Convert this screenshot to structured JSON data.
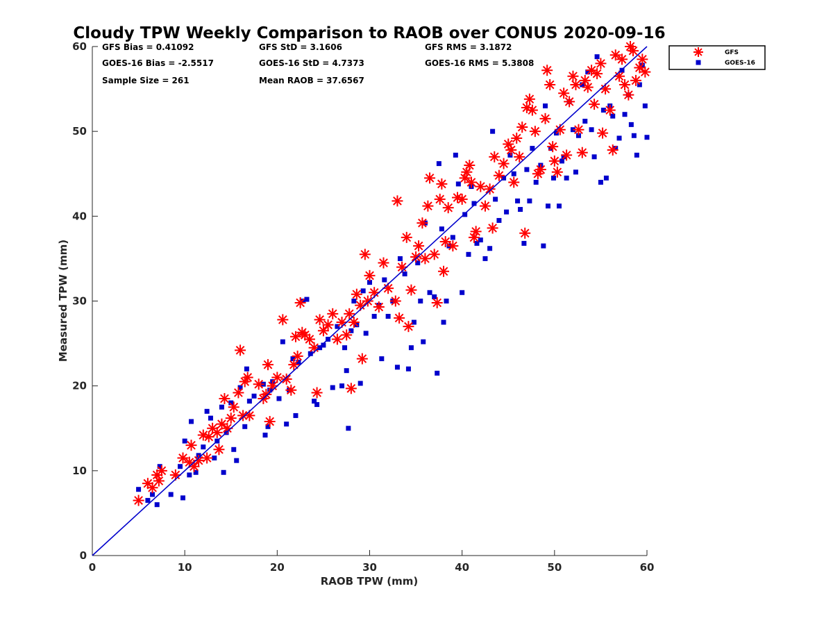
{
  "chart_data": {
    "type": "scatter",
    "title": "Cloudy TPW Weekly Comparison to RAOB over CONUS 2020-09-16",
    "xlabel": "RAOB TPW (mm)",
    "ylabel": "Measured TPW (mm)",
    "xlim": [
      0,
      60
    ],
    "ylim": [
      0,
      60
    ],
    "xticks": [
      "0",
      "10",
      "20",
      "30",
      "40",
      "50",
      "60"
    ],
    "yticks": [
      "0",
      "10",
      "20",
      "30",
      "40",
      "50",
      "60"
    ],
    "grid": false,
    "legend_position": "outside-top-right",
    "reference_line": {
      "x": [
        0,
        60
      ],
      "y": [
        0,
        60
      ],
      "color": "#0000cc"
    },
    "stats": [
      [
        "GFS Bias = 0.41092",
        "GFS StD = 3.1606",
        "GFS RMS = 3.1872"
      ],
      [
        "GOES-16 Bias = -2.5517",
        "GOES-16 StD = 4.7373",
        "GOES-16 RMS = 5.3808"
      ],
      [
        "Sample Size = 261",
        "Mean RAOB = 37.6567"
      ]
    ],
    "series": [
      {
        "name": "GFS",
        "marker": "asterisk",
        "color": "#ff0000",
        "points": [
          [
            5.0,
            6.5
          ],
          [
            6.0,
            8.5
          ],
          [
            6.5,
            8.0
          ],
          [
            7.0,
            9.5
          ],
          [
            7.2,
            8.8
          ],
          [
            7.5,
            10.0
          ],
          [
            9.0,
            9.5
          ],
          [
            9.8,
            11.5
          ],
          [
            10.5,
            11.0
          ],
          [
            10.7,
            13.0
          ],
          [
            11.0,
            10.5
          ],
          [
            11.5,
            11.2
          ],
          [
            12.0,
            14.2
          ],
          [
            12.4,
            11.5
          ],
          [
            12.6,
            14.0
          ],
          [
            13.0,
            15.0
          ],
          [
            13.5,
            14.5
          ],
          [
            13.7,
            12.5
          ],
          [
            14.0,
            15.5
          ],
          [
            14.3,
            18.5
          ],
          [
            14.6,
            15.0
          ],
          [
            15.0,
            16.2
          ],
          [
            15.3,
            17.5
          ],
          [
            15.8,
            19.2
          ],
          [
            16.0,
            24.2
          ],
          [
            16.3,
            16.5
          ],
          [
            16.5,
            20.5
          ],
          [
            16.8,
            21.0
          ],
          [
            17.0,
            16.5
          ],
          [
            18.0,
            20.2
          ],
          [
            18.5,
            18.5
          ],
          [
            18.8,
            19.0
          ],
          [
            19.0,
            22.5
          ],
          [
            19.2,
            15.8
          ],
          [
            19.5,
            20.0
          ],
          [
            20.0,
            21.0
          ],
          [
            20.6,
            27.8
          ],
          [
            21.0,
            20.8
          ],
          [
            21.5,
            19.5
          ],
          [
            21.8,
            22.5
          ],
          [
            22.0,
            25.8
          ],
          [
            22.2,
            23.5
          ],
          [
            22.5,
            29.8
          ],
          [
            22.7,
            26.3
          ],
          [
            23.0,
            26.0
          ],
          [
            23.5,
            25.5
          ],
          [
            24.0,
            24.5
          ],
          [
            24.3,
            19.2
          ],
          [
            24.6,
            27.8
          ],
          [
            25.0,
            26.5
          ],
          [
            25.5,
            27.2
          ],
          [
            26.0,
            28.5
          ],
          [
            26.5,
            25.5
          ],
          [
            27.0,
            27.5
          ],
          [
            27.5,
            26.0
          ],
          [
            27.8,
            28.5
          ],
          [
            28.0,
            19.7
          ],
          [
            28.3,
            27.5
          ],
          [
            28.6,
            30.8
          ],
          [
            29.0,
            29.5
          ],
          [
            29.2,
            23.2
          ],
          [
            29.5,
            35.5
          ],
          [
            29.8,
            30.0
          ],
          [
            30.0,
            33.0
          ],
          [
            30.5,
            31.0
          ],
          [
            31.0,
            29.3
          ],
          [
            31.5,
            34.5
          ],
          [
            32.0,
            31.5
          ],
          [
            32.8,
            30.0
          ],
          [
            33.0,
            41.8
          ],
          [
            33.2,
            28.0
          ],
          [
            33.5,
            34.0
          ],
          [
            34.0,
            37.5
          ],
          [
            34.2,
            27.0
          ],
          [
            34.5,
            31.3
          ],
          [
            35.0,
            35.2
          ],
          [
            35.3,
            36.5
          ],
          [
            35.7,
            39.2
          ],
          [
            36.0,
            35.0
          ],
          [
            36.3,
            41.2
          ],
          [
            36.5,
            44.5
          ],
          [
            37.0,
            35.5
          ],
          [
            37.3,
            29.8
          ],
          [
            37.6,
            42.0
          ],
          [
            37.8,
            43.8
          ],
          [
            38.0,
            33.5
          ],
          [
            38.2,
            37.0
          ],
          [
            38.5,
            41.0
          ],
          [
            39.0,
            36.5
          ],
          [
            39.5,
            42.2
          ],
          [
            40.0,
            42.0
          ],
          [
            40.3,
            44.5
          ],
          [
            40.5,
            45.2
          ],
          [
            40.8,
            46.0
          ],
          [
            41.0,
            44.0
          ],
          [
            41.3,
            37.5
          ],
          [
            41.5,
            38.2
          ],
          [
            42.0,
            43.5
          ],
          [
            42.5,
            41.2
          ],
          [
            43.0,
            43.2
          ],
          [
            43.3,
            38.6
          ],
          [
            43.5,
            47.0
          ],
          [
            44.0,
            44.8
          ],
          [
            44.5,
            46.2
          ],
          [
            45.0,
            48.5
          ],
          [
            45.3,
            47.8
          ],
          [
            45.6,
            44.0
          ],
          [
            45.9,
            49.2
          ],
          [
            46.2,
            47.0
          ],
          [
            46.5,
            50.5
          ],
          [
            46.8,
            38.0
          ],
          [
            47.0,
            52.8
          ],
          [
            47.3,
            53.8
          ],
          [
            47.6,
            52.5
          ],
          [
            47.9,
            50.0
          ],
          [
            48.2,
            45.0
          ],
          [
            48.5,
            45.5
          ],
          [
            49.0,
            51.5
          ],
          [
            49.2,
            57.2
          ],
          [
            49.5,
            55.5
          ],
          [
            49.8,
            48.2
          ],
          [
            50.0,
            46.5
          ],
          [
            50.3,
            45.2
          ],
          [
            50.6,
            50.2
          ],
          [
            51.0,
            54.5
          ],
          [
            51.3,
            47.2
          ],
          [
            51.6,
            53.5
          ],
          [
            52.0,
            56.5
          ],
          [
            52.3,
            55.5
          ],
          [
            52.6,
            50.2
          ],
          [
            53.0,
            47.5
          ],
          [
            53.3,
            56.0
          ],
          [
            53.6,
            55.2
          ],
          [
            54.0,
            57.2
          ],
          [
            54.3,
            53.2
          ],
          [
            54.6,
            56.8
          ],
          [
            55.0,
            58.0
          ],
          [
            55.2,
            49.8
          ],
          [
            55.5,
            55.0
          ],
          [
            56.0,
            52.5
          ],
          [
            56.3,
            47.8
          ],
          [
            56.6,
            59.0
          ],
          [
            57.0,
            56.5
          ],
          [
            57.3,
            58.5
          ],
          [
            57.6,
            55.5
          ],
          [
            58.0,
            54.3
          ],
          [
            58.2,
            60.0
          ],
          [
            58.5,
            59.5
          ],
          [
            58.8,
            56.0
          ],
          [
            59.2,
            57.5
          ],
          [
            59.5,
            58.5
          ],
          [
            59.8,
            57.0
          ]
        ]
      },
      {
        "name": "GOES-16",
        "marker": "square",
        "color": "#0000cc",
        "points": [
          [
            5.0,
            7.8
          ],
          [
            6.0,
            6.5
          ],
          [
            6.5,
            7.2
          ],
          [
            7.0,
            6.0
          ],
          [
            7.3,
            10.5
          ],
          [
            8.5,
            7.2
          ],
          [
            9.5,
            10.5
          ],
          [
            9.8,
            6.8
          ],
          [
            10.0,
            13.5
          ],
          [
            10.5,
            9.5
          ],
          [
            10.7,
            15.8
          ],
          [
            11.2,
            9.8
          ],
          [
            11.5,
            11.8
          ],
          [
            12.0,
            12.8
          ],
          [
            12.4,
            17.0
          ],
          [
            12.8,
            16.2
          ],
          [
            13.2,
            11.5
          ],
          [
            13.5,
            13.5
          ],
          [
            14.0,
            17.5
          ],
          [
            14.2,
            9.8
          ],
          [
            14.5,
            14.5
          ],
          [
            15.0,
            18.0
          ],
          [
            15.3,
            12.5
          ],
          [
            15.6,
            11.2
          ],
          [
            16.0,
            19.8
          ],
          [
            16.5,
            15.2
          ],
          [
            16.7,
            22.0
          ],
          [
            17.0,
            18.2
          ],
          [
            17.5,
            18.8
          ],
          [
            18.5,
            20.2
          ],
          [
            18.7,
            14.2
          ],
          [
            19.0,
            15.2
          ],
          [
            19.2,
            19.5
          ],
          [
            19.5,
            20.5
          ],
          [
            20.2,
            18.5
          ],
          [
            20.6,
            25.2
          ],
          [
            21.0,
            15.5
          ],
          [
            21.3,
            19.5
          ],
          [
            21.7,
            23.2
          ],
          [
            22.0,
            16.5
          ],
          [
            22.3,
            22.8
          ],
          [
            22.8,
            30.0
          ],
          [
            23.2,
            30.2
          ],
          [
            23.6,
            23.8
          ],
          [
            24.0,
            18.2
          ],
          [
            24.3,
            17.8
          ],
          [
            24.6,
            24.5
          ],
          [
            25.0,
            24.8
          ],
          [
            25.5,
            25.5
          ],
          [
            26.0,
            19.8
          ],
          [
            26.5,
            27.0
          ],
          [
            27.0,
            20.0
          ],
          [
            27.3,
            24.5
          ],
          [
            27.5,
            21.8
          ],
          [
            27.7,
            15.0
          ],
          [
            28.0,
            26.5
          ],
          [
            28.3,
            30.0
          ],
          [
            28.6,
            27.2
          ],
          [
            29.0,
            20.3
          ],
          [
            29.3,
            31.2
          ],
          [
            29.6,
            26.2
          ],
          [
            30.0,
            32.2
          ],
          [
            30.5,
            28.2
          ],
          [
            31.0,
            29.5
          ],
          [
            31.3,
            23.2
          ],
          [
            31.6,
            32.5
          ],
          [
            32.0,
            28.2
          ],
          [
            32.5,
            30.0
          ],
          [
            33.0,
            22.2
          ],
          [
            33.3,
            35.0
          ],
          [
            33.8,
            33.2
          ],
          [
            34.2,
            22.0
          ],
          [
            34.5,
            24.5
          ],
          [
            34.8,
            27.5
          ],
          [
            35.2,
            34.5
          ],
          [
            35.5,
            30.0
          ],
          [
            35.8,
            25.2
          ],
          [
            36.0,
            39.2
          ],
          [
            36.5,
            31.0
          ],
          [
            37.0,
            30.5
          ],
          [
            37.3,
            21.5
          ],
          [
            37.5,
            46.2
          ],
          [
            37.8,
            38.5
          ],
          [
            38.0,
            27.5
          ],
          [
            38.3,
            30.0
          ],
          [
            38.6,
            36.5
          ],
          [
            39.0,
            37.5
          ],
          [
            39.3,
            47.2
          ],
          [
            39.6,
            43.8
          ],
          [
            40.0,
            31.0
          ],
          [
            40.3,
            40.2
          ],
          [
            40.7,
            35.5
          ],
          [
            41.0,
            43.5
          ],
          [
            41.3,
            41.5
          ],
          [
            41.6,
            36.8
          ],
          [
            42.0,
            37.2
          ],
          [
            42.5,
            35.0
          ],
          [
            43.0,
            36.2
          ],
          [
            43.3,
            50.0
          ],
          [
            43.6,
            42.0
          ],
          [
            44.0,
            39.5
          ],
          [
            44.5,
            44.5
          ],
          [
            44.8,
            40.5
          ],
          [
            45.2,
            47.2
          ],
          [
            45.6,
            45.0
          ],
          [
            46.0,
            41.8
          ],
          [
            46.3,
            40.8
          ],
          [
            46.7,
            36.8
          ],
          [
            47.0,
            45.5
          ],
          [
            47.3,
            41.8
          ],
          [
            47.6,
            48.0
          ],
          [
            48.0,
            44.0
          ],
          [
            48.5,
            46.0
          ],
          [
            48.8,
            36.5
          ],
          [
            49.0,
            53.0
          ],
          [
            49.3,
            41.2
          ],
          [
            49.6,
            48.0
          ],
          [
            49.9,
            44.5
          ],
          [
            50.2,
            49.8
          ],
          [
            50.5,
            41.2
          ],
          [
            50.8,
            46.5
          ],
          [
            51.0,
            47.0
          ],
          [
            51.3,
            44.5
          ],
          [
            51.6,
            53.5
          ],
          [
            52.0,
            50.2
          ],
          [
            52.3,
            45.2
          ],
          [
            52.6,
            49.5
          ],
          [
            53.0,
            55.5
          ],
          [
            53.3,
            51.2
          ],
          [
            53.6,
            57.0
          ],
          [
            54.0,
            50.2
          ],
          [
            54.3,
            47.0
          ],
          [
            54.6,
            58.8
          ],
          [
            55.0,
            44.0
          ],
          [
            55.3,
            52.5
          ],
          [
            55.6,
            44.5
          ],
          [
            56.0,
            53.0
          ],
          [
            56.3,
            51.8
          ],
          [
            56.6,
            48.0
          ],
          [
            57.0,
            49.2
          ],
          [
            57.3,
            57.2
          ],
          [
            57.6,
            52.0
          ],
          [
            58.0,
            54.3
          ],
          [
            58.3,
            50.8
          ],
          [
            58.6,
            49.5
          ],
          [
            58.9,
            47.2
          ],
          [
            59.2,
            55.5
          ],
          [
            59.5,
            57.8
          ],
          [
            59.8,
            53.0
          ],
          [
            60.0,
            49.3
          ]
        ]
      }
    ]
  }
}
